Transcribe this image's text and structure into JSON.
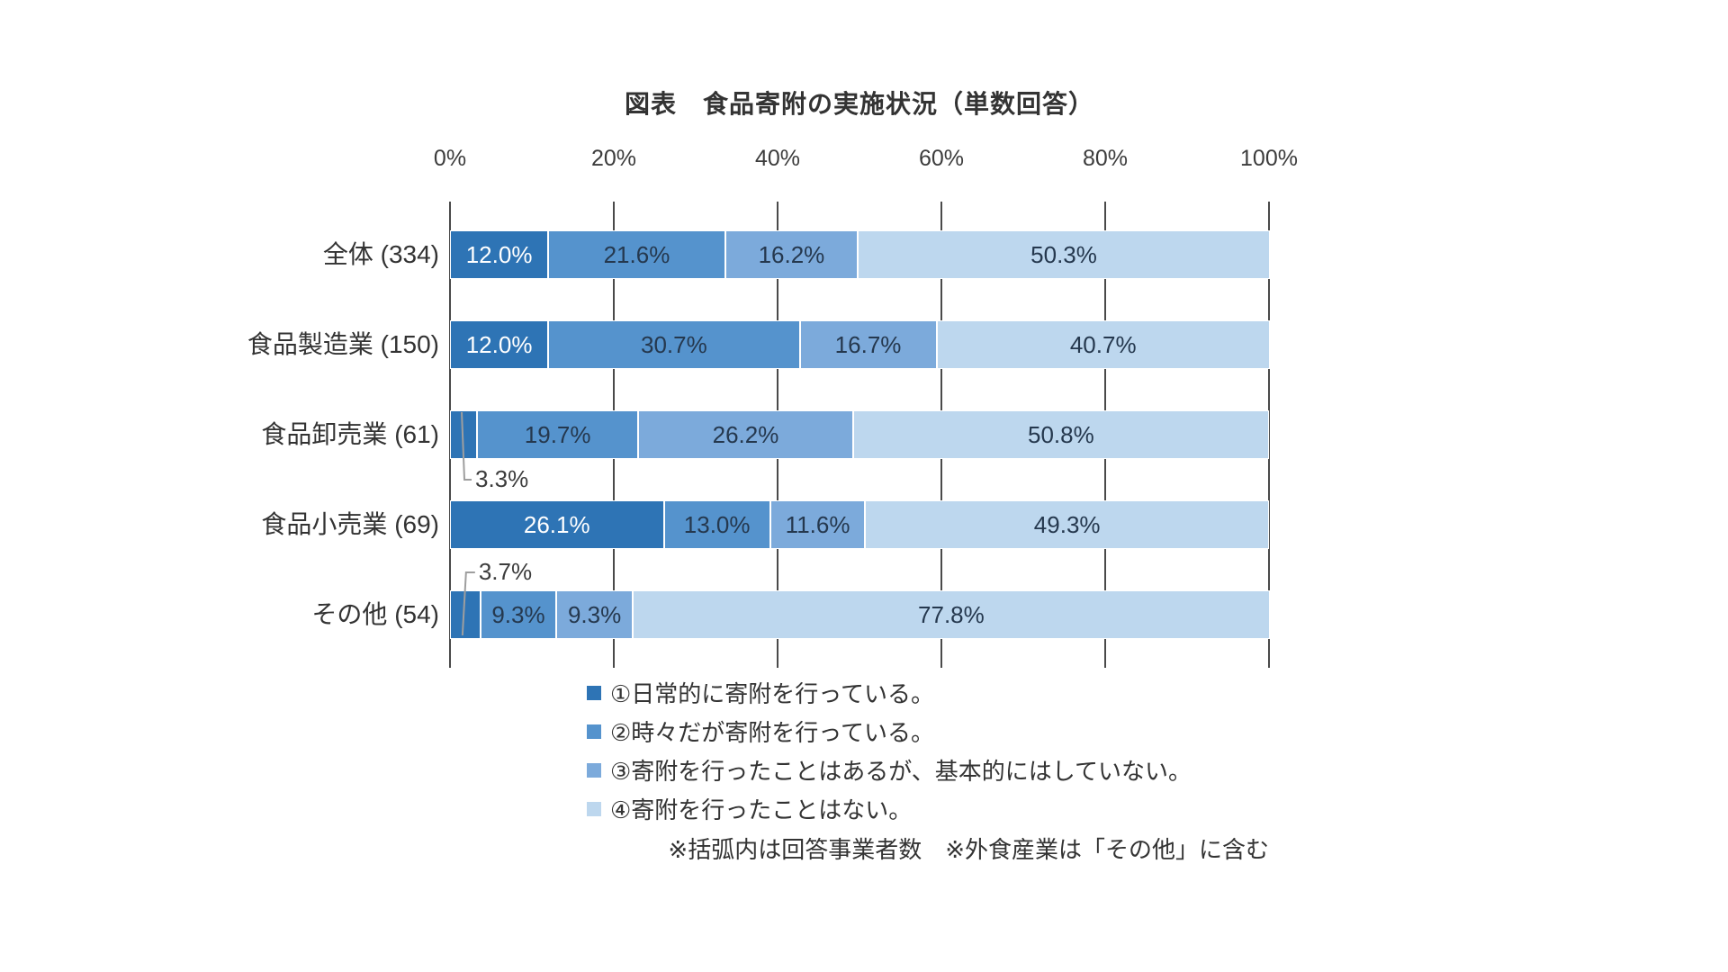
{
  "chart_data": {
    "type": "stacked_bar_horizontal",
    "title": "図表　食品寄附の実施状況（単数回答）",
    "categories": [
      "全体 (334)",
      "食品製造業 (150)",
      "食品卸売業 (61)",
      "食品小売業 (69)",
      "その他 (54)"
    ],
    "series": [
      {
        "name": "①日常的に寄附を行っている。",
        "color": "#2E74B5",
        "values": [
          12.0,
          12.0,
          3.3,
          26.1,
          3.7
        ]
      },
      {
        "name": "②時々だが寄附を行っている。",
        "color": "#5593CD",
        "values": [
          21.6,
          30.7,
          19.7,
          13.0,
          9.3
        ]
      },
      {
        "name": "③寄附を行ったことはあるが、基本的にはしていない。",
        "color": "#7CAADB",
        "values": [
          16.2,
          16.7,
          26.2,
          11.6,
          9.3
        ]
      },
      {
        "name": "④寄附を行ったことはない。",
        "color": "#BDD7EE",
        "values": [
          50.3,
          40.7,
          50.8,
          49.3,
          77.8
        ]
      }
    ],
    "x_ticks": [
      "0%",
      "20%",
      "40%",
      "60%",
      "80%",
      "100%"
    ],
    "xlim": [
      0,
      100
    ],
    "grid": true,
    "legend_position": "bottom",
    "callouts": [
      {
        "row": 2,
        "series": 0,
        "label": "3.3%",
        "side": "below"
      },
      {
        "row": 4,
        "series": 0,
        "label": "3.7%",
        "side": "above"
      }
    ],
    "note": "※括弧内は回答事業者数　※外食産業は「その他」に含む",
    "label_colors": {
      "on_dark": "#ffffff",
      "on_light": "#25384E"
    },
    "leader_line_color": "#9e9e9e"
  }
}
